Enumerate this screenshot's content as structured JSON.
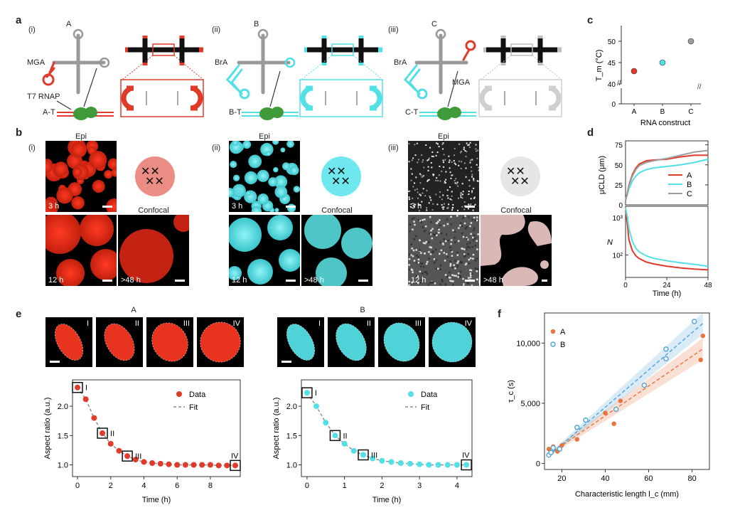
{
  "panel_a": {
    "label": "a",
    "sub": [
      {
        "id": "(i)",
        "title": "A",
        "annotations": [
          "MGA",
          "T7 RNAP",
          "A-T"
        ]
      },
      {
        "id": "(ii)",
        "title": "B",
        "annotations": [
          "BrA",
          "B-T"
        ]
      },
      {
        "id": "(iii)",
        "title": "C",
        "annotations": [
          "BrA",
          "MGA",
          "C-T"
        ]
      }
    ],
    "colors": {
      "A": "#e03a2a",
      "B": "#52e0e6",
      "C": "#bdbdbd",
      "polymerase": "#3f9a3a"
    }
  },
  "panel_b": {
    "label": "b",
    "sub": [
      {
        "id": "(i)",
        "epi": "Epi",
        "confocal": "Confocal",
        "t1": "3 h",
        "t2": "12 h",
        "t3": ">48 h"
      },
      {
        "id": "(ii)",
        "epi": "Epi",
        "confocal": "Confocal",
        "t1": "3 h",
        "t2": "12 h",
        "t3": ">48 h"
      },
      {
        "id": "(iii)",
        "epi": "Epi",
        "confocal": "Confocal",
        "t1": "3 h",
        "t2": "12 h",
        "t3": ">48 h"
      }
    ]
  },
  "panel_e": {
    "label": "e",
    "A": {
      "title": "A",
      "frames": [
        "I",
        "II",
        "III",
        "IV"
      ]
    },
    "B": {
      "title": "B",
      "frames": [
        "I",
        "II",
        "III",
        "IV"
      ]
    }
  },
  "panel_c_label": "c",
  "panel_d_label": "d",
  "panel_f_label": "f",
  "chart_data": [
    {
      "id": "c",
      "type": "scatter",
      "xlabel": "RNA construct",
      "ylabel": "T_m (°C)",
      "categories": [
        "A",
        "B",
        "C"
      ],
      "values": [
        43,
        45,
        50
      ],
      "yticks": [
        0,
        40,
        45,
        50
      ],
      "colors": [
        "#e03a2a",
        "#52e0e6",
        "#9e9e9e"
      ]
    },
    {
      "id": "d-top",
      "type": "line",
      "ylabel": "μCLD (μm)",
      "yticks": [
        0,
        25,
        50,
        75
      ],
      "xlim": [
        0,
        48
      ],
      "ylim": [
        0,
        80
      ],
      "legend": [
        "A",
        "B",
        "C"
      ],
      "series": [
        {
          "name": "A",
          "color": "#e03a2a",
          "x": [
            0,
            2,
            4,
            6,
            8,
            12,
            16,
            24,
            32,
            40,
            48
          ],
          "y": [
            5,
            25,
            38,
            46,
            51,
            55,
            56,
            57,
            60,
            62,
            62
          ]
        },
        {
          "name": "B",
          "color": "#52e0e6",
          "x": [
            0,
            2,
            4,
            6,
            8,
            12,
            16,
            24,
            32,
            40,
            48
          ],
          "y": [
            5,
            20,
            30,
            36,
            40,
            44,
            46,
            48,
            50,
            53,
            57
          ]
        },
        {
          "name": "C",
          "color": "#9e9e9e",
          "x": [
            0,
            2,
            4,
            6,
            8,
            12,
            16,
            24,
            32,
            40,
            48
          ],
          "y": [
            5,
            24,
            36,
            44,
            49,
            53,
            55,
            58,
            62,
            66,
            68
          ]
        }
      ]
    },
    {
      "id": "d-bottom",
      "type": "line",
      "xlabel": "Time (h)",
      "ylabel": "N",
      "xticks": [
        0,
        24,
        48
      ],
      "ytick_labels": [
        "10²",
        "10³"
      ],
      "xlim": [
        0,
        48
      ],
      "ylim_log": [
        1.4,
        3.3
      ],
      "series": [
        {
          "name": "A",
          "color": "#e03a2a",
          "x": [
            0,
            1,
            2,
            4,
            6,
            8,
            12,
            16,
            24,
            32,
            40,
            48
          ],
          "y": [
            1600,
            700,
            250,
            130,
            95,
            80,
            65,
            58,
            50,
            45,
            42,
            40
          ]
        },
        {
          "name": "B",
          "color": "#52e0e6",
          "x": [
            0,
            1,
            2,
            4,
            6,
            8,
            12,
            16,
            24,
            32,
            40,
            48
          ],
          "y": [
            1800,
            1100,
            500,
            230,
            150,
            120,
            95,
            82,
            70,
            62,
            56,
            50
          ]
        }
      ]
    },
    {
      "id": "e-A",
      "type": "scatter",
      "xlabel": "Time (h)",
      "ylabel": "Aspect ratio (a.u.)",
      "xticks": [
        0,
        2,
        4,
        6,
        8
      ],
      "yticks": [
        1.0,
        1.5,
        2.0
      ],
      "xlim": [
        -0.3,
        9.8
      ],
      "ylim": [
        0.8,
        2.45
      ],
      "legend": [
        "Data",
        "Fit"
      ],
      "color": "#e03a2a",
      "x": [
        0,
        0.5,
        1,
        1.5,
        2,
        2.5,
        3,
        3.5,
        4,
        4.5,
        5,
        5.5,
        6,
        6.5,
        7,
        7.5,
        8,
        8.5,
        9,
        9.5
      ],
      "y": [
        2.32,
        2.12,
        1.8,
        1.54,
        1.36,
        1.24,
        1.15,
        1.09,
        1.05,
        1.03,
        1.02,
        1.01,
        1.0,
        1.0,
        1.0,
        1.0,
        1.0,
        0.99,
        0.99,
        0.99
      ],
      "frames": [
        {
          "label": "I",
          "x": 0
        },
        {
          "label": "II",
          "x": 1.5
        },
        {
          "label": "III",
          "x": 3
        },
        {
          "label": "IV",
          "x": 9.5
        }
      ]
    },
    {
      "id": "e-B",
      "type": "scatter",
      "xlabel": "Time (h)",
      "ylabel": "Aspect ratio (a.u.)",
      "xticks": [
        0,
        1,
        2,
        3,
        4
      ],
      "yticks": [
        1.0,
        1.5,
        2.0
      ],
      "xlim": [
        -0.15,
        4.4
      ],
      "ylim": [
        0.8,
        2.45
      ],
      "legend": [
        "Data",
        "Fit"
      ],
      "color": "#52e0e6",
      "x": [
        0,
        0.25,
        0.5,
        0.75,
        1,
        1.25,
        1.5,
        1.75,
        2,
        2.25,
        2.5,
        2.75,
        3,
        3.25,
        3.5,
        3.75,
        4,
        4.25
      ],
      "y": [
        2.23,
        2.0,
        1.72,
        1.5,
        1.36,
        1.24,
        1.17,
        1.11,
        1.07,
        1.05,
        1.03,
        1.02,
        1.01,
        1.0,
        1.0,
        1.0,
        1.0,
        1.0
      ],
      "frames": [
        {
          "label": "I",
          "x": 0
        },
        {
          "label": "II",
          "x": 0.75
        },
        {
          "label": "III",
          "x": 1.5
        },
        {
          "label": "IV",
          "x": 4.25
        }
      ]
    },
    {
      "id": "f",
      "type": "scatter",
      "xlabel": "Characteristic length l_c (mm)",
      "ylabel": "τ_c (s)",
      "xticks": [
        20,
        40,
        60,
        80
      ],
      "yticks": [
        0,
        5000,
        10000
      ],
      "ytick_labels": [
        "0",
        "5,000",
        "10,000"
      ],
      "xlim": [
        12,
        88
      ],
      "ylim": [
        -500,
        12500
      ],
      "legend": [
        "A",
        "B"
      ],
      "series": [
        {
          "name": "A",
          "color": "#e8743b",
          "x": [
            14,
            16,
            18,
            20,
            27,
            40,
            44,
            47,
            84,
            85
          ],
          "y": [
            1200,
            1400,
            1000,
            1500,
            2000,
            4200,
            3300,
            5200,
            8600,
            10600
          ]
        },
        {
          "name": "B",
          "color": "#4fa3d8",
          "x": [
            14,
            15,
            16,
            19,
            27,
            31,
            45,
            58,
            68,
            68,
            81
          ],
          "y": [
            700,
            900,
            1300,
            1200,
            3000,
            3600,
            4500,
            6500,
            8700,
            9500,
            11800
          ]
        }
      ]
    }
  ]
}
